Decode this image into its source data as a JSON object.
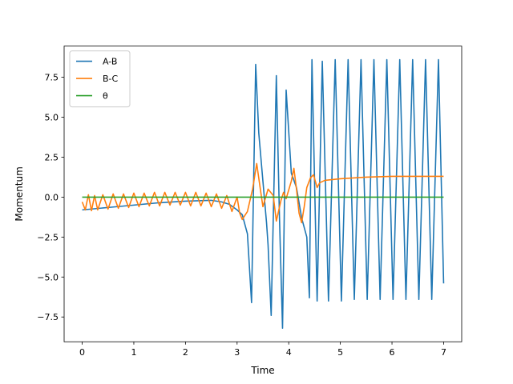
{
  "chart_data": {
    "type": "line",
    "title": "",
    "xlabel": "Time",
    "ylabel": "Momentum",
    "xlim": [
      -0.35,
      7.35
    ],
    "ylim": [
      -9.05,
      9.45
    ],
    "xticks": [
      0,
      1,
      2,
      3,
      4,
      5,
      6,
      7
    ],
    "xtick_labels": [
      "0",
      "1",
      "2",
      "3",
      "4",
      "5",
      "6",
      "7"
    ],
    "yticks": [
      -7.5,
      -5.0,
      -2.5,
      0.0,
      2.5,
      5.0,
      7.5
    ],
    "ytick_labels": [
      "−7.5",
      "−5.0",
      "−2.5",
      "0.0",
      "2.5",
      "5.0",
      "7.5"
    ],
    "grid": false,
    "legend_position": "top-left",
    "series": [
      {
        "name": "A-B",
        "color": "#1f77b4",
        "points": [
          [
            0.0,
            -0.8
          ],
          [
            0.5,
            -0.65
          ],
          [
            1.0,
            -0.5
          ],
          [
            1.5,
            -0.35
          ],
          [
            2.0,
            -0.25
          ],
          [
            2.5,
            -0.2
          ],
          [
            2.7,
            -0.3
          ],
          [
            2.85,
            -0.45
          ],
          [
            3.0,
            -0.8
          ],
          [
            3.1,
            -1.1
          ],
          [
            3.2,
            -2.3
          ],
          [
            3.28,
            -6.6
          ],
          [
            3.36,
            8.3
          ],
          [
            3.42,
            4.0
          ],
          [
            3.5,
            1.0
          ],
          [
            3.57,
            -1.6
          ],
          [
            3.6,
            -3.0
          ],
          [
            3.66,
            -7.4
          ],
          [
            3.76,
            7.6
          ],
          [
            3.82,
            -1.2
          ],
          [
            3.88,
            -8.2
          ],
          [
            3.95,
            6.7
          ],
          [
            4.05,
            1.5
          ],
          [
            4.15,
            0.6
          ],
          [
            4.25,
            -1.3
          ],
          [
            4.35,
            -2.5
          ],
          [
            4.4,
            -6.3
          ],
          [
            4.45,
            8.6
          ],
          [
            4.55,
            -6.5
          ],
          [
            4.65,
            8.5
          ],
          [
            4.77,
            -6.5
          ],
          [
            4.9,
            8.6
          ],
          [
            5.02,
            -6.5
          ],
          [
            5.15,
            8.6
          ],
          [
            5.27,
            -6.4
          ],
          [
            5.4,
            8.6
          ],
          [
            5.52,
            -6.4
          ],
          [
            5.65,
            8.6
          ],
          [
            5.77,
            -6.4
          ],
          [
            5.9,
            8.6
          ],
          [
            6.02,
            -6.4
          ],
          [
            6.15,
            8.6
          ],
          [
            6.27,
            -6.4
          ],
          [
            6.4,
            8.6
          ],
          [
            6.52,
            -6.4
          ],
          [
            6.65,
            8.6
          ],
          [
            6.77,
            -6.4
          ],
          [
            6.9,
            8.6
          ],
          [
            7.0,
            -5.4
          ]
        ]
      },
      {
        "name": "B-C",
        "color": "#ff7f0e",
        "points": [
          [
            0.0,
            -0.3
          ],
          [
            0.06,
            -0.8
          ],
          [
            0.12,
            0.15
          ],
          [
            0.18,
            -0.85
          ],
          [
            0.24,
            0.1
          ],
          [
            0.3,
            -0.8
          ],
          [
            0.4,
            0.15
          ],
          [
            0.5,
            -0.75
          ],
          [
            0.6,
            0.2
          ],
          [
            0.7,
            -0.7
          ],
          [
            0.8,
            0.2
          ],
          [
            0.9,
            -0.65
          ],
          [
            1.0,
            0.25
          ],
          [
            1.1,
            -0.6
          ],
          [
            1.2,
            0.25
          ],
          [
            1.3,
            -0.55
          ],
          [
            1.4,
            0.3
          ],
          [
            1.5,
            -0.55
          ],
          [
            1.6,
            0.3
          ],
          [
            1.7,
            -0.5
          ],
          [
            1.8,
            0.3
          ],
          [
            1.9,
            -0.5
          ],
          [
            2.0,
            0.3
          ],
          [
            2.1,
            -0.55
          ],
          [
            2.2,
            0.3
          ],
          [
            2.3,
            -0.55
          ],
          [
            2.4,
            0.25
          ],
          [
            2.5,
            -0.6
          ],
          [
            2.6,
            0.2
          ],
          [
            2.7,
            -0.7
          ],
          [
            2.8,
            0.1
          ],
          [
            2.9,
            -0.9
          ],
          [
            3.0,
            0.0
          ],
          [
            3.05,
            -1.0
          ],
          [
            3.1,
            -1.4
          ],
          [
            3.2,
            -0.9
          ],
          [
            3.3,
            0.5
          ],
          [
            3.38,
            2.1
          ],
          [
            3.45,
            0.5
          ],
          [
            3.5,
            -0.6
          ],
          [
            3.6,
            0.5
          ],
          [
            3.7,
            0.1
          ],
          [
            3.76,
            -1.5
          ],
          [
            3.85,
            -0.2
          ],
          [
            3.9,
            0.3
          ],
          [
            3.95,
            -0.1
          ],
          [
            4.05,
            1.0
          ],
          [
            4.1,
            1.8
          ],
          [
            4.15,
            0.5
          ],
          [
            4.2,
            -1.0
          ],
          [
            4.25,
            -1.6
          ],
          [
            4.3,
            -0.6
          ],
          [
            4.35,
            0.6
          ],
          [
            4.42,
            1.2
          ],
          [
            4.48,
            1.4
          ],
          [
            4.55,
            0.6
          ],
          [
            4.6,
            0.9
          ],
          [
            4.7,
            1.05
          ],
          [
            5.0,
            1.15
          ],
          [
            5.5,
            1.25
          ],
          [
            6.0,
            1.3
          ],
          [
            7.0,
            1.3
          ]
        ]
      },
      {
        "name": "θ",
        "color": "#2ca02c",
        "points": [
          [
            0.0,
            0.0
          ],
          [
            7.0,
            0.0
          ]
        ]
      }
    ]
  }
}
